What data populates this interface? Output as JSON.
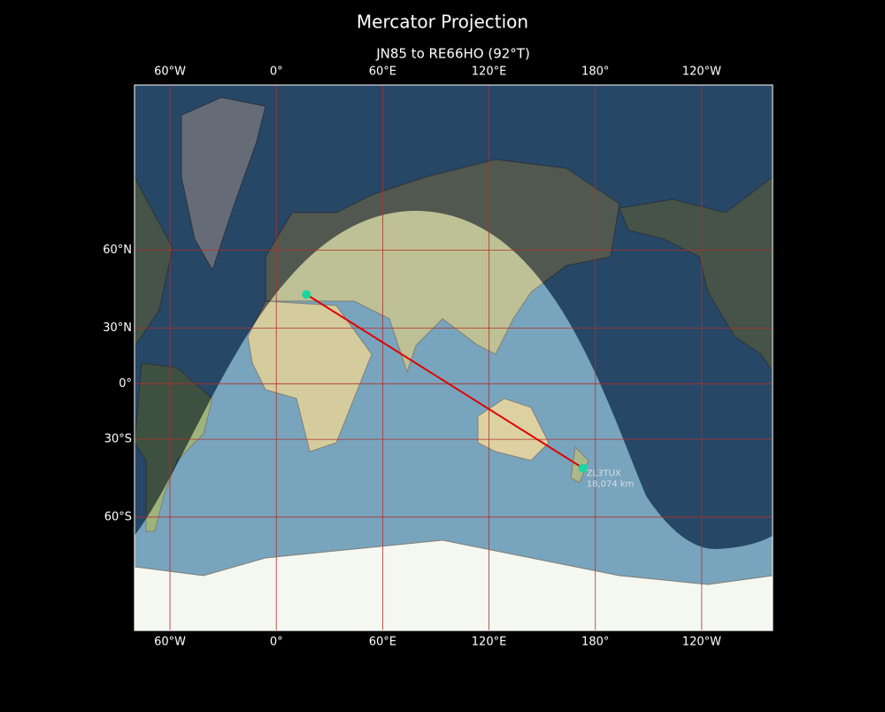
{
  "title": "Mercator Projection",
  "subtitle": "JN85 to RE66HO (92°T)",
  "map": {
    "projection": "mercator",
    "lon_range": [
      -80,
      280
    ],
    "lat_range": [
      -80,
      84
    ],
    "lon_ticks": [
      {
        "value": -60,
        "label": "60°W"
      },
      {
        "value": 0,
        "label": "0°"
      },
      {
        "value": 60,
        "label": "60°E"
      },
      {
        "value": 120,
        "label": "120°E"
      },
      {
        "value": 180,
        "label": "180°"
      },
      {
        "value": 240,
        "label": "120°W"
      }
    ],
    "lat_ticks": [
      {
        "value": 60,
        "label": "60°N"
      },
      {
        "value": 30,
        "label": "30°N"
      },
      {
        "value": 0,
        "label": "0°"
      },
      {
        "value": -30,
        "label": "30°S"
      },
      {
        "value": -60,
        "label": "60°S"
      }
    ],
    "route": {
      "from": {
        "lon": 17,
        "lat": 45
      },
      "to": {
        "lon": 173,
        "lat": -43
      },
      "color": "#e00000"
    },
    "station": "ZL3TUX",
    "distance": "18,074 km"
  }
}
